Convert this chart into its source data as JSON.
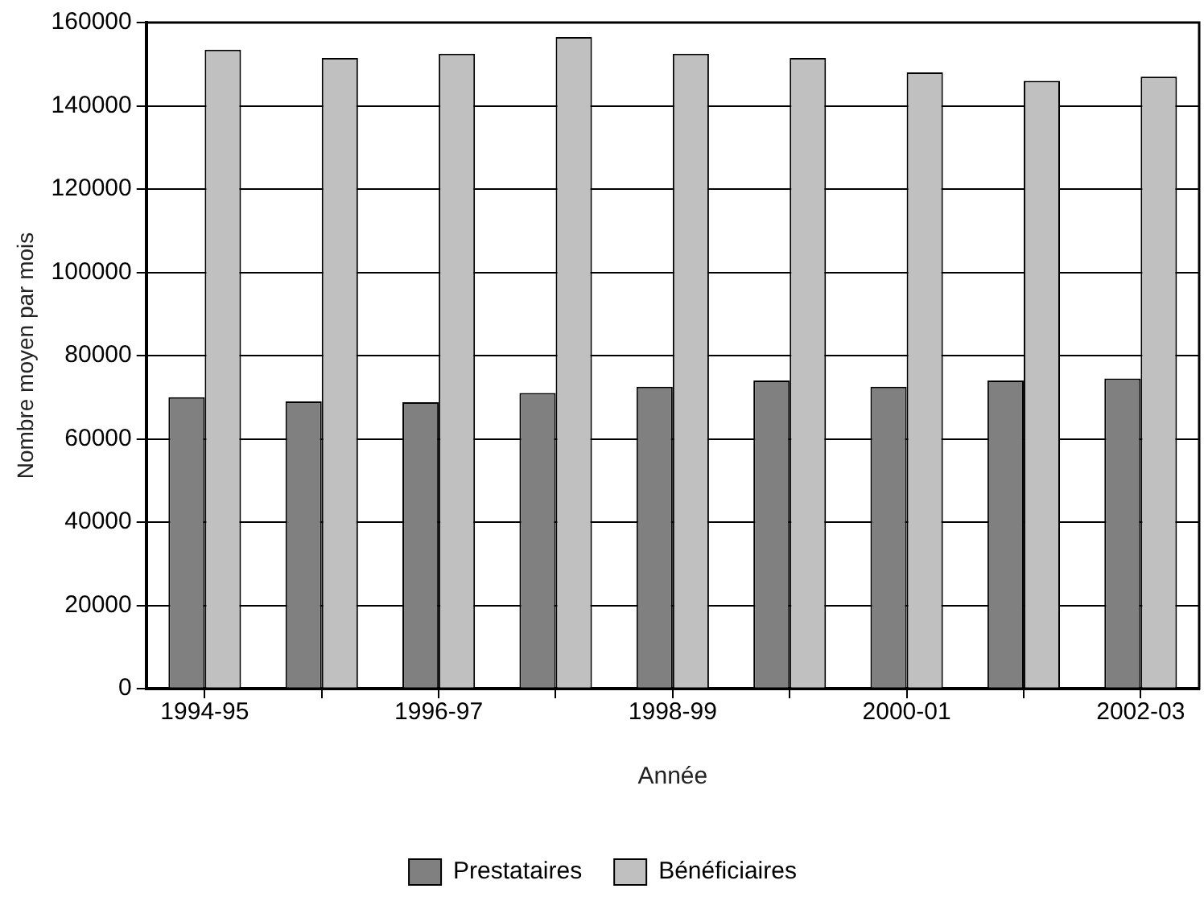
{
  "chart_data": {
    "type": "bar",
    "xlabel": "Année",
    "ylabel": "Nombre moyen par mois",
    "categories": [
      "1994-95",
      null,
      "1996-97",
      null,
      "1998-99",
      null,
      "2000-01",
      null,
      "2002-03"
    ],
    "series": [
      {
        "name": "Prestataires",
        "color": "#808080",
        "values": [
          70000,
          69000,
          68800,
          71000,
          72500,
          74000,
          72500,
          74000,
          74500
        ]
      },
      {
        "name": "Bénéficiaires",
        "color": "#c0c0c0",
        "values": [
          153500,
          151500,
          152500,
          156500,
          152500,
          151500,
          148000,
          146000,
          147000
        ]
      }
    ],
    "ylim": [
      0,
      160000
    ],
    "yticks": [
      0,
      20000,
      40000,
      60000,
      80000,
      100000,
      120000,
      140000,
      160000
    ],
    "grid": "y",
    "legend": "bottom"
  }
}
